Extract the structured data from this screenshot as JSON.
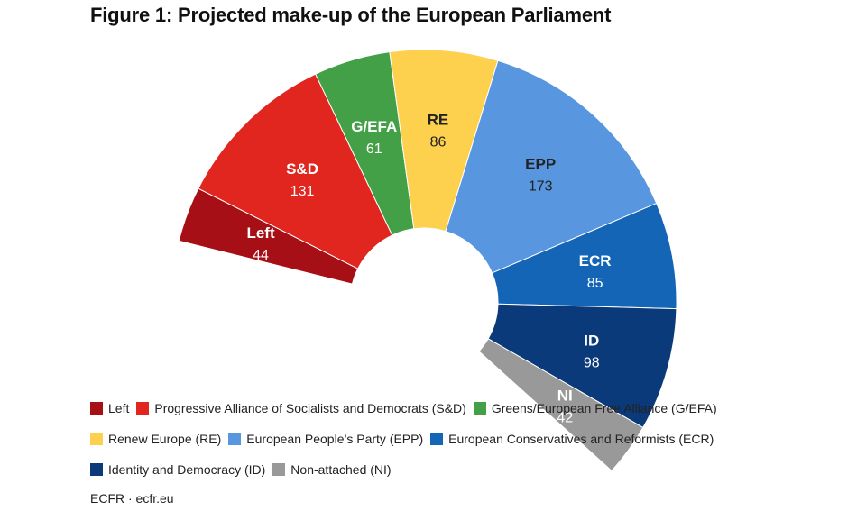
{
  "title": "Figure 1: Projected make-up of the European Parliament",
  "source": "ECFR · ecfr.eu",
  "chart_data": {
    "type": "pie",
    "subtype": "hemicycle",
    "title": "Figure 1: Projected make-up of the European Parliament",
    "segments": [
      {
        "short": "Left",
        "value": 44,
        "color": "#a50f15",
        "legend": "Left"
      },
      {
        "short": "S&D",
        "value": 131,
        "color": "#e0261f",
        "legend": "Progressive Alliance of Socialists and Democrats (S&D)"
      },
      {
        "short": "G/EFA",
        "value": 61,
        "color": "#43a047",
        "legend": "Greens/European Free Alliance (G/EFA)"
      },
      {
        "short": "RE",
        "value": 86,
        "color": "#fdd04e",
        "legend": "Renew Europe (RE)"
      },
      {
        "short": "EPP",
        "value": 173,
        "color": "#5896e0",
        "legend": "European People’s Party (EPP)"
      },
      {
        "short": "ECR",
        "value": 85,
        "color": "#1565b7",
        "legend": "European Conservatives and Reformists (ECR)"
      },
      {
        "short": "ID",
        "value": 98,
        "color": "#0b3a7a",
        "legend": "Identity and Democracy (ID)"
      },
      {
        "short": "NI",
        "value": 42,
        "color": "#999999",
        "legend": "Non-attached (NI)"
      }
    ]
  }
}
